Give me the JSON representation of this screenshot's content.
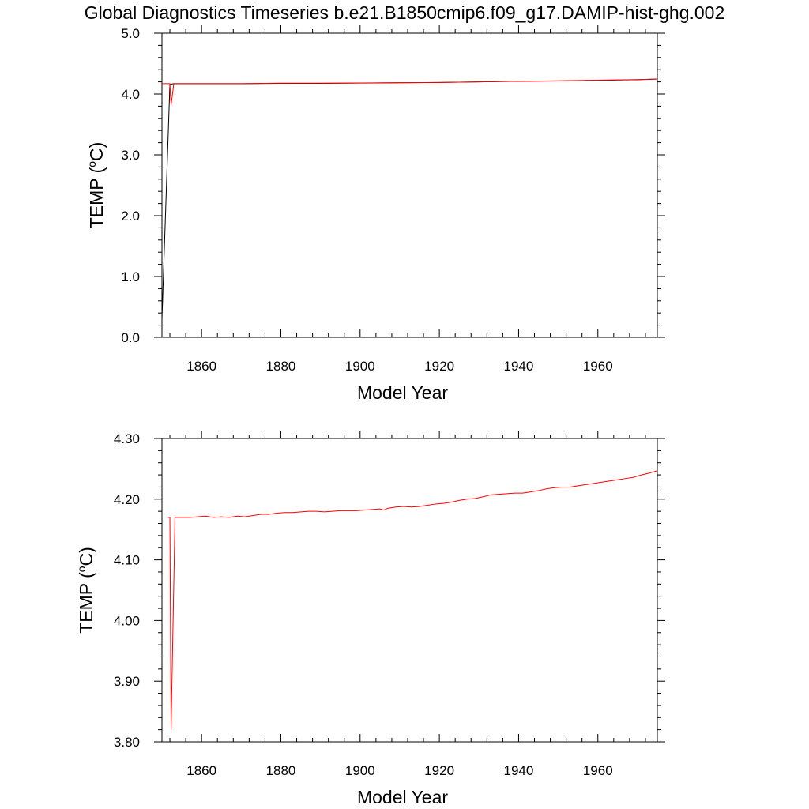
{
  "title": "Global Diagnostics Timeseries b.e21.B1850cmip6.f09_g17.DAMIP-hist-ghg.002",
  "chart_data": [
    {
      "type": "line",
      "xlabel": "Model Year",
      "ylabel": "TEMP (",
      "ylabel_sup": "o",
      "ylabel_unit": "C)",
      "xlim": [
        1850,
        1975
      ],
      "ylim": [
        0.0,
        5.0
      ],
      "xticks": [
        1860,
        1880,
        1900,
        1920,
        1940,
        1960
      ],
      "xtick_labels": [
        "1860",
        "1880",
        "1900",
        "1920",
        "1940",
        "1960"
      ],
      "yticks": [
        0.0,
        1.0,
        2.0,
        3.0,
        4.0,
        5.0
      ],
      "ytick_labels": [
        "0.0",
        "1.0",
        "2.0",
        "3.0",
        "4.0",
        "5.0"
      ],
      "grid": false,
      "series": [
        {
          "color": "#000000",
          "x": [
            1850.0,
            1852.0,
            1852.1,
            1853.0,
            1860,
            1870,
            1880,
            1890,
            1900,
            1910,
            1920,
            1930,
            1940,
            1950,
            1960,
            1970,
            1975
          ],
          "y": [
            0.3,
            4.15,
            4.16,
            4.17,
            4.17,
            4.17,
            4.175,
            4.175,
            4.18,
            4.185,
            4.19,
            4.2,
            4.21,
            4.215,
            4.225,
            4.235,
            4.245
          ]
        },
        {
          "color": "#ff0000",
          "x": [
            1850.0,
            1852.0,
            1852.3,
            1853.0,
            1860,
            1870,
            1880,
            1890,
            1900,
            1910,
            1920,
            1930,
            1940,
            1950,
            1960,
            1970,
            1975
          ],
          "y": [
            4.17,
            4.17,
            3.82,
            4.17,
            4.17,
            4.17,
            4.178,
            4.178,
            4.182,
            4.186,
            4.19,
            4.2,
            4.21,
            4.218,
            4.228,
            4.237,
            4.247
          ]
        }
      ]
    },
    {
      "type": "line",
      "xlabel": "Model Year",
      "ylabel": "TEMP (",
      "ylabel_sup": "o",
      "ylabel_unit": "C)",
      "xlim": [
        1850,
        1975
      ],
      "ylim": [
        3.8,
        4.3
      ],
      "xticks": [
        1860,
        1880,
        1900,
        1920,
        1940,
        1960
      ],
      "xtick_labels": [
        "1860",
        "1880",
        "1900",
        "1920",
        "1940",
        "1960"
      ],
      "yticks": [
        3.8,
        3.9,
        4.0,
        4.1,
        4.2,
        4.3
      ],
      "ytick_labels": [
        "3.80",
        "3.90",
        "4.00",
        "4.10",
        "4.20",
        "4.30"
      ],
      "grid": false,
      "series": [
        {
          "color": "#ff0000",
          "x": [
            1851.5,
            1852.0,
            1852.3,
            1853.3,
            1855,
            1857,
            1859,
            1861,
            1863,
            1865,
            1867,
            1869,
            1871,
            1873,
            1875,
            1877,
            1879,
            1881,
            1883,
            1885,
            1887,
            1889,
            1891,
            1893,
            1895,
            1897,
            1899,
            1901,
            1903,
            1905,
            1906,
            1907,
            1909,
            1911,
            1913,
            1915,
            1917,
            1919,
            1921,
            1923,
            1925,
            1927,
            1929,
            1931,
            1933,
            1935,
            1937,
            1939,
            1941,
            1943,
            1945,
            1947,
            1949,
            1951,
            1953,
            1955,
            1957,
            1959,
            1961,
            1963,
            1965,
            1967,
            1969,
            1971,
            1973,
            1975
          ],
          "y": [
            4.17,
            4.17,
            3.82,
            4.17,
            4.17,
            4.17,
            4.171,
            4.172,
            4.17,
            4.171,
            4.17,
            4.172,
            4.171,
            4.173,
            4.175,
            4.175,
            4.177,
            4.178,
            4.178,
            4.179,
            4.18,
            4.18,
            4.179,
            4.18,
            4.181,
            4.181,
            4.181,
            4.182,
            4.183,
            4.184,
            4.182,
            4.185,
            4.187,
            4.188,
            4.187,
            4.188,
            4.19,
            4.192,
            4.193,
            4.195,
            4.198,
            4.2,
            4.201,
            4.204,
            4.207,
            4.208,
            4.209,
            4.21,
            4.21,
            4.212,
            4.214,
            4.217,
            4.219,
            4.22,
            4.22,
            4.222,
            4.224,
            4.226,
            4.228,
            4.23,
            4.232,
            4.234,
            4.236,
            4.24,
            4.243,
            4.247
          ]
        }
      ]
    }
  ]
}
